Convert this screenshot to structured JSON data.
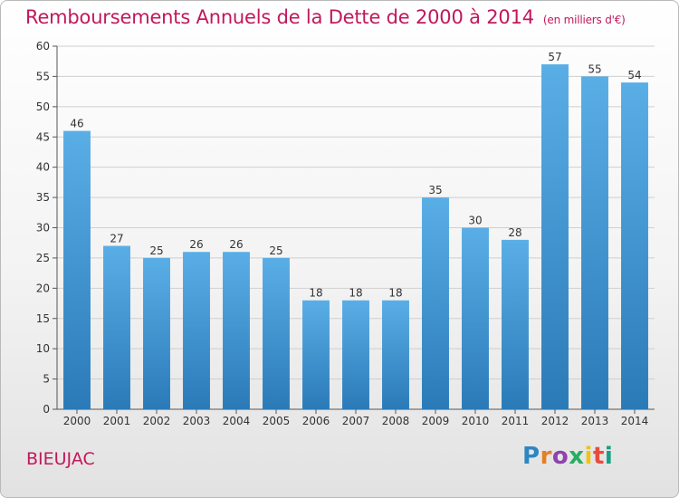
{
  "title": "Remboursements Annuels de la Dette de 2000 à 2014",
  "unit_note": "(en milliers d'€)",
  "commune": "BIEUJAC",
  "logo_text": "Proxiti",
  "colors": {
    "title": "#c2185b",
    "bar_top": "#5aaee6",
    "bar_bottom": "#2a7ab8",
    "grid": "#cfcfcf"
  },
  "chart_data": {
    "type": "bar",
    "title": "Remboursements Annuels de la Dette de 2000 à 2014",
    "categories": [
      "2000",
      "2001",
      "2002",
      "2003",
      "2004",
      "2005",
      "2006",
      "2007",
      "2008",
      "2009",
      "2010",
      "2011",
      "2012",
      "2013",
      "2014"
    ],
    "values": [
      46,
      27,
      25,
      26,
      26,
      25,
      18,
      18,
      18,
      35,
      30,
      28,
      57,
      55,
      54
    ],
    "ylim": [
      0,
      60
    ],
    "yticks": [
      0,
      5,
      10,
      15,
      20,
      25,
      30,
      35,
      40,
      45,
      50,
      55,
      60
    ],
    "grid": true,
    "xlabel": "",
    "ylabel": ""
  }
}
